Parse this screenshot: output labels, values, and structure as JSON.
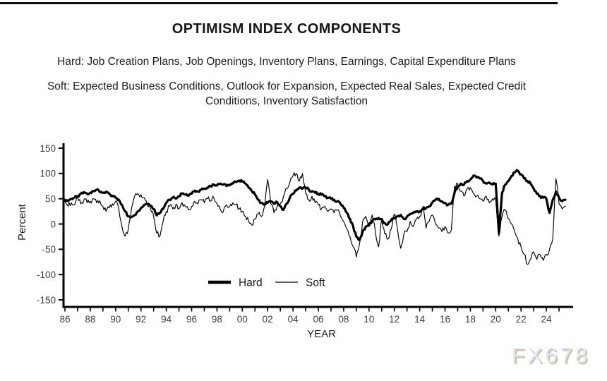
{
  "page": {
    "title": "OPTIMISM INDEX COMPONENTS",
    "hard_definition": "Hard: Job Creation Plans, Job Openings, Inventory Plans, Earnings, Capital Expenditure Plans",
    "soft_definition": "Soft: Expected Business Conditions, Outlook for Expansion, Expected Real Sales, Expected Credit Conditions, Inventory Satisfaction",
    "watermark": "FX678"
  },
  "chart_data": {
    "type": "line",
    "title": "OPTIMISM INDEX COMPONENTS",
    "xlabel": "YEAR",
    "ylabel": "Percent",
    "x_start": 1986.0,
    "x_step": 0.25,
    "x_unit": "year (quarterly estimates)",
    "xlim": [
      1985.8,
      2026.3
    ],
    "ylim": [
      -165,
      170
    ],
    "y_ticks": [
      150,
      100,
      50,
      0,
      -50,
      -100,
      -150
    ],
    "x_tick_years": [
      1986,
      1988,
      1990,
      1992,
      1994,
      1996,
      1998,
      2000,
      2002,
      2004,
      2006,
      2008,
      2010,
      2012,
      2014,
      2016,
      2018,
      2020,
      2022,
      2024
    ],
    "x_tick_labels": [
      "86",
      "88",
      "90",
      "92",
      "94",
      "96",
      "98",
      "00",
      "02",
      "04",
      "06",
      "08",
      "10",
      "12",
      "14",
      "16",
      "18",
      "20",
      "22",
      "24"
    ],
    "minor_x_ticks_every_year": true,
    "grid": false,
    "legend_position": "inside-bottom-center",
    "line_color": "#000000",
    "tick_text_color": "#3d3d3d",
    "series": [
      {
        "name": "Hard",
        "weight": "thick",
        "values": [
          48,
          45,
          50,
          52,
          55,
          60,
          63,
          60,
          62,
          65,
          68,
          63,
          62,
          64,
          60,
          56,
          52,
          48,
          38,
          25,
          15,
          14,
          18,
          25,
          32,
          38,
          40,
          36,
          30,
          17,
          22,
          30,
          42,
          48,
          52,
          50,
          55,
          60,
          58,
          56,
          60,
          66,
          64,
          68,
          70,
          72,
          75,
          78,
          76,
          80,
          78,
          75,
          78,
          80,
          83,
          86,
          84,
          80,
          72,
          65,
          58,
          48,
          42,
          38,
          42,
          45,
          40,
          43,
          35,
          28,
          40,
          52,
          60,
          66,
          72,
          70,
          72,
          68,
          65,
          62,
          60,
          58,
          55,
          52,
          50,
          48,
          45,
          40,
          32,
          22,
          10,
          -5,
          -25,
          -32,
          -15,
          -5,
          0,
          6,
          9,
          12,
          10,
          2,
          0,
          8,
          12,
          15,
          18,
          10,
          15,
          20,
          22,
          25,
          25,
          30,
          32,
          35,
          42,
          48,
          50,
          45,
          42,
          38,
          40,
          62,
          75,
          80,
          78,
          85,
          88,
          96,
          92,
          90,
          85,
          80,
          82,
          78,
          80,
          -18,
          62,
          78,
          85,
          95,
          102,
          105,
          98,
          90,
          85,
          80,
          70,
          60,
          55,
          52,
          50,
          22,
          48,
          64,
          52,
          45,
          48
        ]
      },
      {
        "name": "Soft",
        "weight": "thin",
        "values": [
          45,
          35,
          42,
          38,
          52,
          40,
          48,
          42,
          45,
          50,
          42,
          46,
          35,
          25,
          32,
          40,
          45,
          30,
          -5,
          -24,
          -10,
          30,
          55,
          60,
          58,
          52,
          38,
          30,
          15,
          -18,
          -24,
          5,
          25,
          35,
          30,
          38,
          30,
          42,
          35,
          28,
          35,
          45,
          40,
          48,
          42,
          50,
          45,
          52,
          40,
          30,
          25,
          38,
          35,
          42,
          38,
          30,
          25,
          15,
          5,
          -2,
          10,
          20,
          15,
          35,
          88,
          40,
          22,
          35,
          40,
          55,
          70,
          82,
          95,
          100,
          85,
          100,
          60,
          48,
          55,
          42,
          38,
          30,
          35,
          25,
          30,
          22,
          28,
          15,
          5,
          -10,
          -25,
          -45,
          -65,
          -40,
          5,
          15,
          -5,
          18,
          -15,
          -45,
          10,
          -20,
          -30,
          -10,
          20,
          -10,
          -48,
          -20,
          -15,
          5,
          -5,
          10,
          15,
          34,
          -8,
          5,
          18,
          0,
          -8,
          -15,
          -5,
          -18,
          -12,
          75,
          80,
          65,
          55,
          70,
          72,
          60,
          55,
          50,
          45,
          55,
          42,
          50,
          48,
          -24,
          15,
          28,
          10,
          0,
          -15,
          -30,
          -45,
          -60,
          -80,
          -70,
          -55,
          -70,
          -60,
          -72,
          -60,
          -50,
          -30,
          90,
          40,
          30,
          35
        ]
      }
    ]
  }
}
